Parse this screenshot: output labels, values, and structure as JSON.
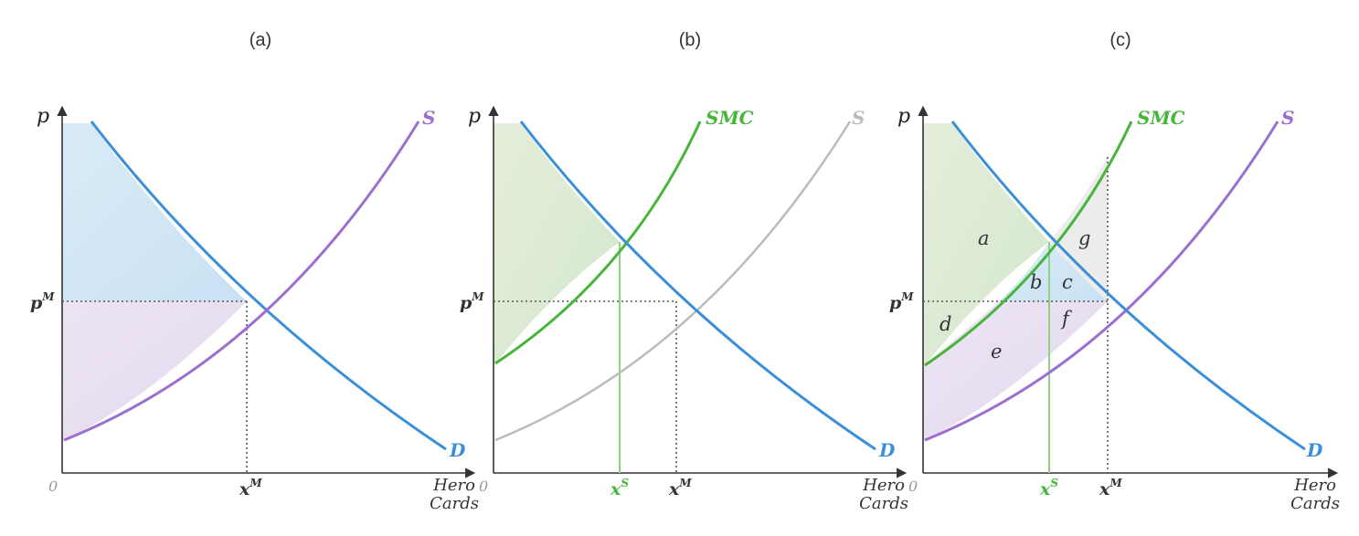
{
  "panels": [
    {
      "title": "(a)",
      "y_axis_label": "p",
      "origin_label": "0",
      "price_tick_label": "p",
      "price_tick_sup": "M",
      "quantity_ticks": [
        {
          "label": "x",
          "sup": "M",
          "color": "#333333"
        }
      ],
      "x_axis_label": [
        "Hero",
        "Cards"
      ],
      "curves": [
        {
          "name": "S",
          "color": "#9b6fd0"
        },
        {
          "name": "D",
          "color": "#3a8fd8"
        }
      ],
      "areas": []
    },
    {
      "title": "(b)",
      "y_axis_label": "p",
      "origin_label": "0",
      "price_tick_label": "p",
      "price_tick_sup": "M",
      "quantity_ticks": [
        {
          "label": "x",
          "sup": "S",
          "color": "#46b53a"
        },
        {
          "label": "x",
          "sup": "M",
          "color": "#333333"
        }
      ],
      "x_axis_label": [
        "Hero",
        "Cards"
      ],
      "curves": [
        {
          "name": "SMC",
          "color": "#46b53a"
        },
        {
          "name": "S",
          "color": "#bbbbbb"
        },
        {
          "name": "D",
          "color": "#3a8fd8"
        }
      ],
      "areas": []
    },
    {
      "title": "(c)",
      "y_axis_label": "p",
      "origin_label": "0",
      "price_tick_label": "p",
      "price_tick_sup": "M",
      "quantity_ticks": [
        {
          "label": "x",
          "sup": "S",
          "color": "#46b53a"
        },
        {
          "label": "x",
          "sup": "M",
          "color": "#333333"
        }
      ],
      "x_axis_label": [
        "Hero",
        "Cards"
      ],
      "curves": [
        {
          "name": "SMC",
          "color": "#46b53a"
        },
        {
          "name": "S",
          "color": "#9b6fd0"
        },
        {
          "name": "D",
          "color": "#3a8fd8"
        }
      ],
      "areas": [
        "a",
        "b",
        "c",
        "d",
        "e",
        "f",
        "g"
      ]
    }
  ]
}
